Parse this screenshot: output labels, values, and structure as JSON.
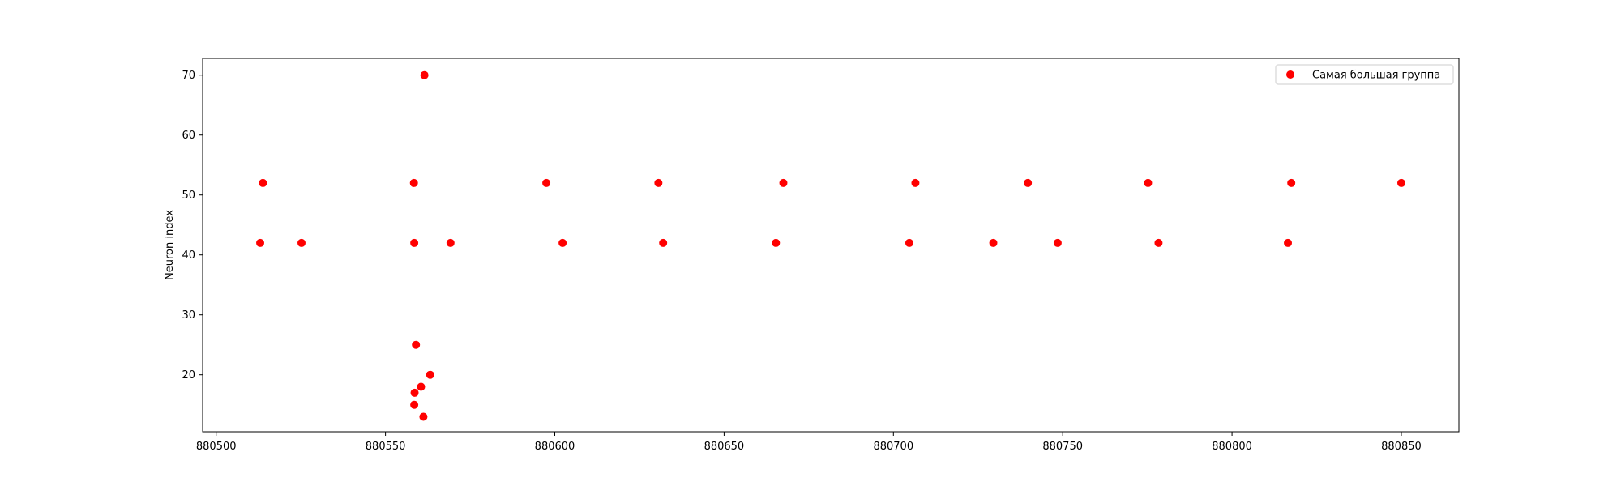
{
  "chart_data": {
    "type": "scatter",
    "title": "",
    "xlabel": "",
    "ylabel": "Neuron index",
    "xlim": [
      880496,
      880867
    ],
    "ylim": [
      10.5,
      72.8
    ],
    "xticks": [
      880500,
      880550,
      880600,
      880650,
      880700,
      880750,
      880800,
      880850
    ],
    "yticks": [
      20,
      30,
      40,
      50,
      60,
      70
    ],
    "grid": false,
    "legend_position": "top-right",
    "series": [
      {
        "name": "Самая большая группа",
        "color": "#ff0000",
        "points": [
          {
            "x": 880513.0,
            "y": 42
          },
          {
            "x": 880513.8,
            "y": 52
          },
          {
            "x": 880525.2,
            "y": 42
          },
          {
            "x": 880558.4,
            "y": 52
          },
          {
            "x": 880558.5,
            "y": 42
          },
          {
            "x": 880559.0,
            "y": 25
          },
          {
            "x": 880558.6,
            "y": 17
          },
          {
            "x": 880558.5,
            "y": 15
          },
          {
            "x": 880560.5,
            "y": 18
          },
          {
            "x": 880561.2,
            "y": 13
          },
          {
            "x": 880561.5,
            "y": 70
          },
          {
            "x": 880563.2,
            "y": 20
          },
          {
            "x": 880569.2,
            "y": 42
          },
          {
            "x": 880597.5,
            "y": 52
          },
          {
            "x": 880602.3,
            "y": 42
          },
          {
            "x": 880630.6,
            "y": 52
          },
          {
            "x": 880632.0,
            "y": 42
          },
          {
            "x": 880665.3,
            "y": 42
          },
          {
            "x": 880667.5,
            "y": 52
          },
          {
            "x": 880704.7,
            "y": 42
          },
          {
            "x": 880706.5,
            "y": 52
          },
          {
            "x": 880729.5,
            "y": 42
          },
          {
            "x": 880739.7,
            "y": 52
          },
          {
            "x": 880748.5,
            "y": 42
          },
          {
            "x": 880775.2,
            "y": 52
          },
          {
            "x": 880778.3,
            "y": 42
          },
          {
            "x": 880816.5,
            "y": 42
          },
          {
            "x": 880817.5,
            "y": 52
          },
          {
            "x": 880850.0,
            "y": 52
          }
        ]
      }
    ]
  }
}
